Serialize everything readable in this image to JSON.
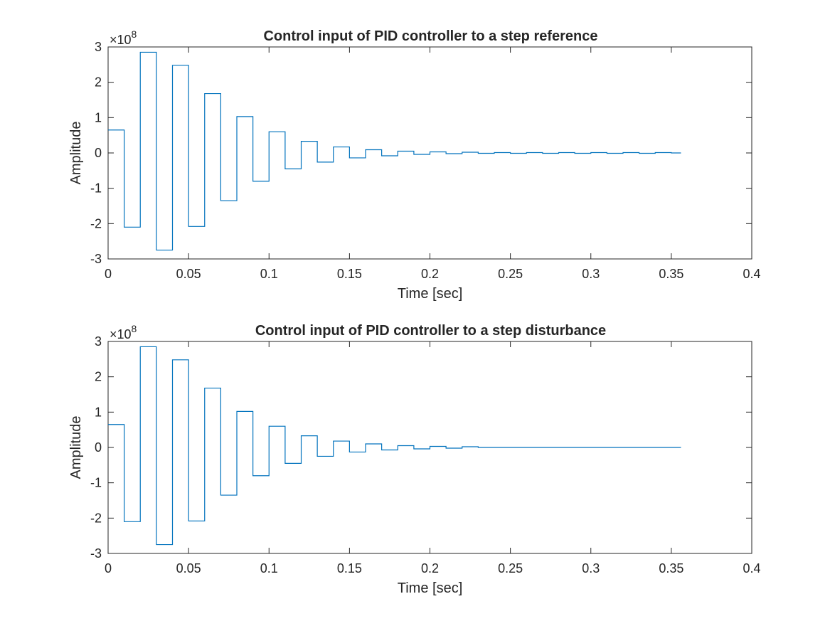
{
  "colors": {
    "line": "#0072BD",
    "axis": "#262626",
    "background": "#ffffff"
  },
  "chart_data": [
    {
      "type": "line",
      "step": true,
      "title": "Control input of PID controller to a step reference",
      "xlabel": "Time [sec]",
      "ylabel": "Amplitude",
      "exponent_base": "×10",
      "exponent_power": "8",
      "xlim": [
        0,
        0.4
      ],
      "ylim": [
        -3,
        3
      ],
      "x_ticks": [
        0,
        0.05,
        0.1,
        0.15,
        0.2,
        0.25,
        0.3,
        0.35,
        0.4
      ],
      "x_tick_labels": [
        "0",
        "0.05",
        "0.1",
        "0.15",
        "0.2",
        "0.25",
        "0.3",
        "0.35",
        "0.4"
      ],
      "y_ticks": [
        -3,
        -2,
        -1,
        0,
        1,
        2,
        3
      ],
      "y_tick_labels": [
        "-3",
        "-2",
        "-1",
        "0",
        "1",
        "2",
        "3"
      ],
      "grid": false,
      "series": [
        {
          "x_step": 0.01,
          "x_end": 0.356,
          "values": [
            0.65,
            -2.1,
            2.85,
            -2.75,
            2.48,
            -2.08,
            1.68,
            -1.35,
            1.03,
            -0.8,
            0.6,
            -0.45,
            0.33,
            -0.26,
            0.17,
            -0.14,
            0.09,
            -0.08,
            0.05,
            -0.04,
            0.03,
            -0.02,
            0.02,
            -0.01,
            0.01,
            -0.01,
            0.01,
            -0.01,
            0.01,
            -0.01,
            0.01,
            -0.01,
            0.01,
            -0.01,
            0.01,
            0.0
          ]
        }
      ]
    },
    {
      "type": "line",
      "step": true,
      "title": "Control input of PID controller to a step disturbance",
      "xlabel": "Time [sec]",
      "ylabel": "Amplitude",
      "exponent_base": "×10",
      "exponent_power": "8",
      "xlim": [
        0,
        0.4
      ],
      "ylim": [
        -3,
        3
      ],
      "x_ticks": [
        0,
        0.05,
        0.1,
        0.15,
        0.2,
        0.25,
        0.3,
        0.35,
        0.4
      ],
      "x_tick_labels": [
        "0",
        "0.05",
        "0.1",
        "0.15",
        "0.2",
        "0.25",
        "0.3",
        "0.35",
        "0.4"
      ],
      "y_ticks": [
        -3,
        -2,
        -1,
        0,
        1,
        2,
        3
      ],
      "y_tick_labels": [
        "-3",
        "-2",
        "-1",
        "0",
        "1",
        "2",
        "3"
      ],
      "grid": false,
      "series": [
        {
          "x_step": 0.01,
          "x_end": 0.356,
          "values": [
            0.65,
            -2.1,
            2.85,
            -2.75,
            2.48,
            -2.08,
            1.68,
            -1.35,
            1.02,
            -0.8,
            0.6,
            -0.45,
            0.33,
            -0.25,
            0.18,
            -0.13,
            0.1,
            -0.07,
            0.05,
            -0.04,
            0.03,
            -0.02,
            0.02,
            0.0,
            0.0,
            0.0,
            0.0,
            0.0,
            0.0,
            0.0,
            0.0,
            0.0,
            0.0,
            0.0,
            0.0,
            0.0
          ]
        }
      ]
    }
  ]
}
